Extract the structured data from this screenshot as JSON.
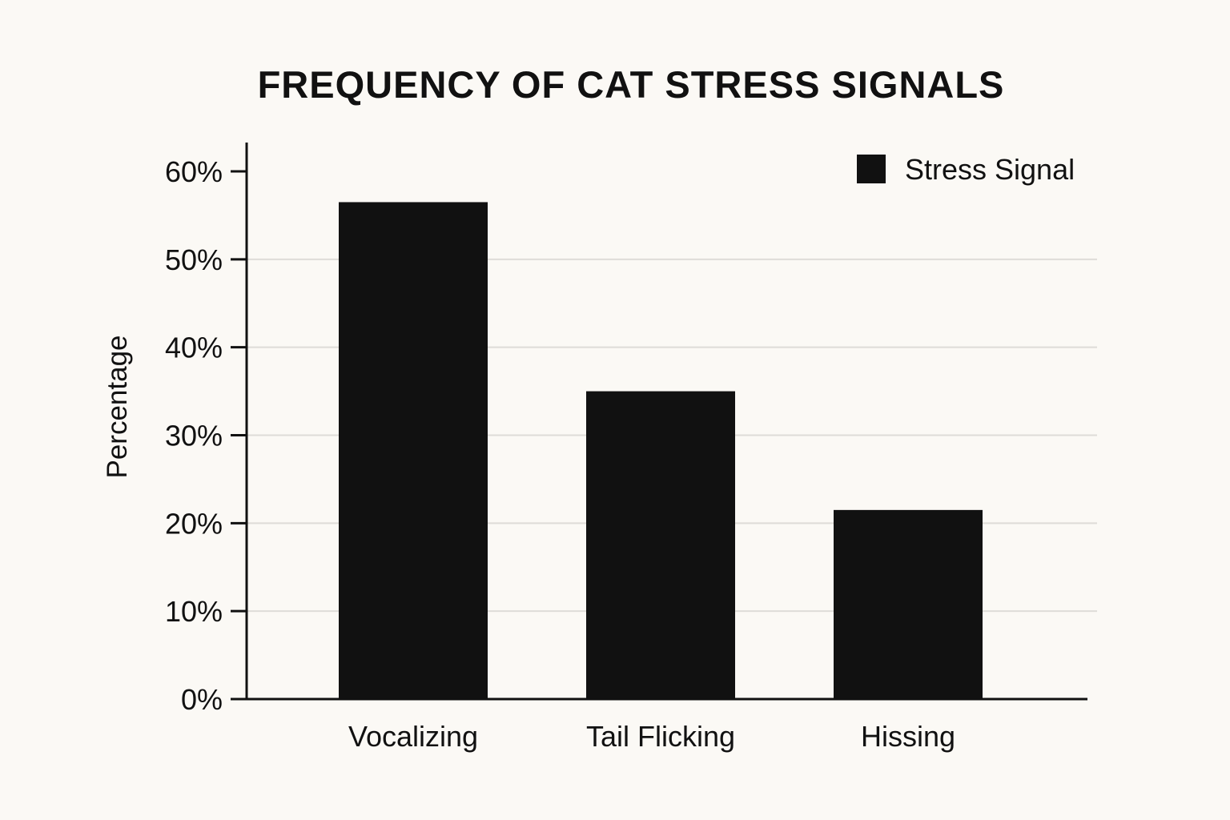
{
  "chart_data": {
    "type": "bar",
    "title": "FREQUENCY OF CAT STRESS SIGNALS",
    "ylabel": "Percentage",
    "xlabel": "",
    "categories": [
      "Vocalizing",
      "Tail Flicking",
      "Hissing"
    ],
    "series": [
      {
        "name": "Stress Signal",
        "values": [
          56.5,
          35,
          21.5
        ]
      }
    ],
    "ylim": [
      0,
      60
    ],
    "yticks": [
      0,
      10,
      20,
      30,
      40,
      50,
      60
    ],
    "ytick_labels": [
      "0%",
      "10%",
      "20%",
      "30%",
      "40%",
      "50%",
      "60%"
    ],
    "grid": true,
    "legend": "top-right",
    "colors": {
      "bar": "#111111",
      "axis": "#111111",
      "grid": "#dedcd8",
      "background": "#fbf9f5"
    }
  }
}
